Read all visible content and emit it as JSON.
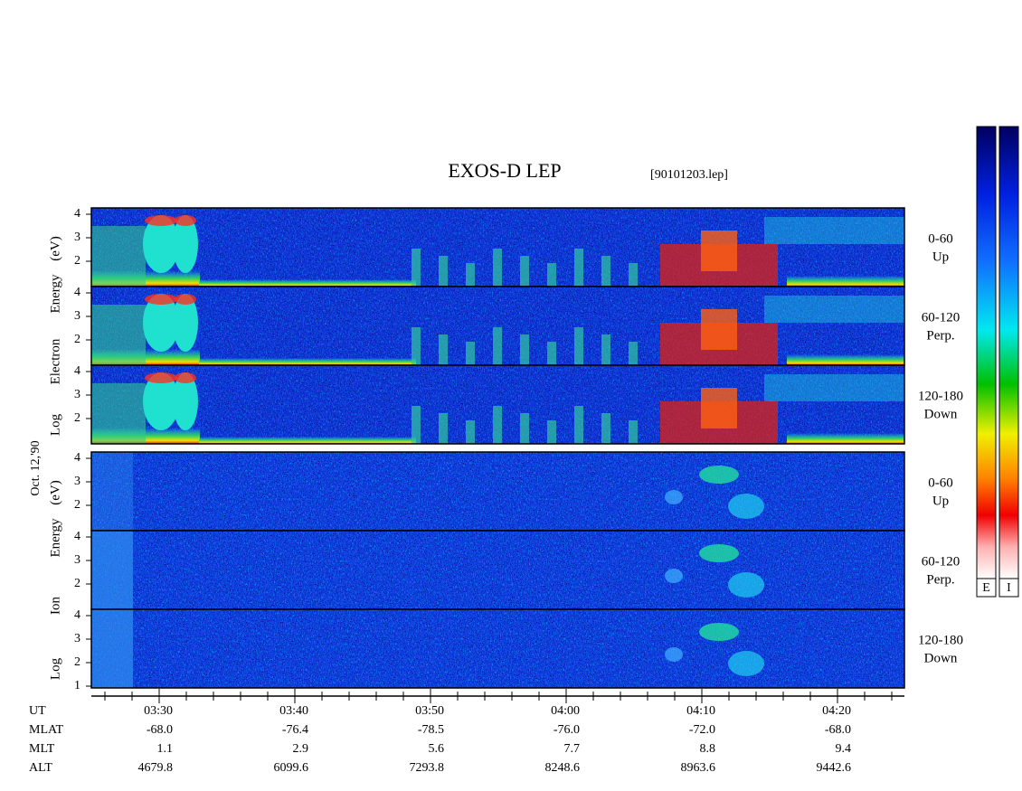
{
  "title": "EXOS-D LEP",
  "file": "[90101203.lep]",
  "date_label": "Oct. 12,'90",
  "electron": {
    "ylabel": [
      "Log",
      "Electron",
      "Energy",
      "(eV)"
    ],
    "panels": [
      {
        "range": "0-60",
        "direction": "Up",
        "yticks": [
          2,
          3,
          4
        ]
      },
      {
        "range": "60-120",
        "direction": "Perp.",
        "yticks": [
          2,
          3,
          4
        ]
      },
      {
        "range": "120-180",
        "direction": "Down",
        "yticks": [
          2,
          3,
          4
        ]
      }
    ]
  },
  "ion": {
    "ylabel": [
      "Log",
      "Ion",
      "Energy",
      "(eV)"
    ],
    "panels": [
      {
        "range": "0-60",
        "direction": "Up",
        "yticks": [
          2,
          3,
          4
        ]
      },
      {
        "range": "60-120",
        "direction": "Perp.",
        "yticks": [
          2,
          3,
          4
        ]
      },
      {
        "range": "120-180",
        "direction": "Down",
        "yticks": [
          1,
          2,
          3,
          4
        ]
      }
    ]
  },
  "orbit": {
    "row_labels": [
      "UT",
      "MLAT",
      "MLT",
      "ALT"
    ],
    "columns": [
      [
        "03:30",
        "-68.0",
        "1.1",
        "4679.8"
      ],
      [
        "03:40",
        "-76.4",
        "2.9",
        "6099.6"
      ],
      [
        "03:50",
        "-78.5",
        "5.6",
        "7293.8"
      ],
      [
        "04:00",
        "-76.0",
        "7.7",
        "8248.6"
      ],
      [
        "04:10",
        "-72.0",
        "8.8",
        "8963.6"
      ],
      [
        "04:20",
        "-68.0",
        "9.4",
        "9442.6"
      ]
    ]
  },
  "colorbars": [
    "E",
    "I"
  ]
}
